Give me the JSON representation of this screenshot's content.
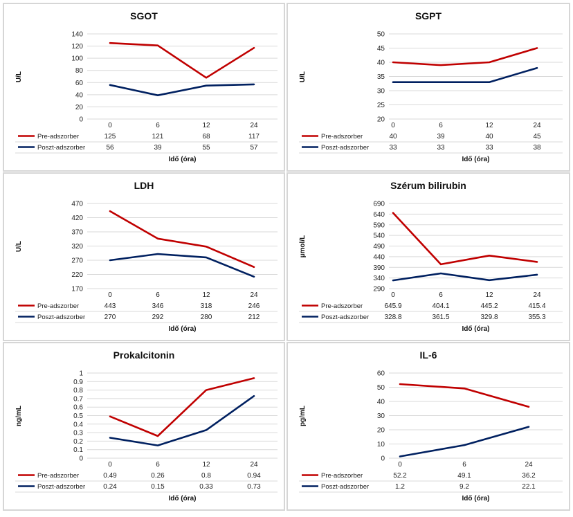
{
  "colors": {
    "pre": "#C00000",
    "post": "#002060",
    "grid": "#d9d9d9",
    "border": "#d6d6d6"
  },
  "chart_data": [
    {
      "type": "line",
      "title": "SGOT",
      "ylabel": "U/L",
      "xlabel": "Idő (óra)",
      "categories": [
        "0",
        "6",
        "12",
        "24"
      ],
      "ylim": [
        0,
        140
      ],
      "yticks": [
        0,
        20,
        40,
        60,
        80,
        100,
        120,
        140
      ],
      "series": [
        {
          "name": "Pre-adszorber",
          "values": [
            125,
            121,
            68,
            117
          ],
          "labels": [
            "125",
            "121",
            "68",
            "117"
          ]
        },
        {
          "name": "Poszt-adszorber",
          "values": [
            56,
            39,
            55,
            57
          ],
          "labels": [
            "56",
            "39",
            "55",
            "57"
          ]
        }
      ]
    },
    {
      "type": "line",
      "title": "SGPT",
      "ylabel": "U/L",
      "xlabel": "Idő (óra)",
      "categories": [
        "0",
        "6",
        "12",
        "24"
      ],
      "ylim": [
        20,
        50
      ],
      "yticks": [
        20,
        25,
        30,
        35,
        40,
        45,
        50
      ],
      "series": [
        {
          "name": "Pre-adszorber",
          "values": [
            40,
            39,
            40,
            45
          ],
          "labels": [
            "40",
            "39",
            "40",
            "45"
          ]
        },
        {
          "name": "Poszt-adszorber",
          "values": [
            33,
            33,
            33,
            38
          ],
          "labels": [
            "33",
            "33",
            "33",
            "38"
          ]
        }
      ]
    },
    {
      "type": "line",
      "title": "LDH",
      "ylabel": "U/L",
      "xlabel": "Idő (óra)",
      "categories": [
        "0",
        "6",
        "12",
        "24"
      ],
      "ylim": [
        170,
        470
      ],
      "yticks": [
        170,
        220,
        270,
        320,
        370,
        420,
        470
      ],
      "series": [
        {
          "name": "Pre-adszorber",
          "values": [
            443,
            346,
            318,
            246
          ],
          "labels": [
            "443",
            "346",
            "318",
            "246"
          ]
        },
        {
          "name": "Poszt-adszorber",
          "values": [
            270,
            292,
            280,
            212
          ],
          "labels": [
            "270",
            "292",
            "280",
            "212"
          ]
        }
      ]
    },
    {
      "type": "line",
      "title": "Szérum bilirubin",
      "ylabel": "µmol/L",
      "xlabel": "Idő (óra)",
      "categories": [
        "0",
        "6",
        "12",
        "24"
      ],
      "ylim": [
        290,
        690
      ],
      "yticks": [
        290,
        340,
        390,
        440,
        490,
        540,
        590,
        640,
        690
      ],
      "series": [
        {
          "name": "Pre-adszorber",
          "values": [
            645.9,
            404.1,
            445.2,
            415.4
          ],
          "labels": [
            "645.9",
            "404.1",
            "445.2",
            "415.4"
          ]
        },
        {
          "name": "Poszt-adszorber",
          "values": [
            328.8,
            361.5,
            329.8,
            355.3
          ],
          "labels": [
            "328.8",
            "361.5",
            "329.8",
            "355.3"
          ]
        }
      ]
    },
    {
      "type": "line",
      "title": "Prokalcitonin",
      "ylabel": "ng/mL",
      "xlabel": "Idő (óra)",
      "categories": [
        "0",
        "6",
        "12",
        "24"
      ],
      "ylim": [
        0,
        1
      ],
      "yticks": [
        0,
        0.1,
        0.2,
        0.3,
        0.4,
        0.5,
        0.6,
        0.7,
        0.8,
        0.9,
        1
      ],
      "series": [
        {
          "name": "Pre-adszorber",
          "values": [
            0.49,
            0.26,
            0.8,
            0.94
          ],
          "labels": [
            "0.49",
            "0.26",
            "0.8",
            "0.94"
          ]
        },
        {
          "name": "Poszt-adszorber",
          "values": [
            0.24,
            0.15,
            0.33,
            0.73
          ],
          "labels": [
            "0.24",
            "0.15",
            "0.33",
            "0.73"
          ]
        }
      ]
    },
    {
      "type": "line",
      "title": "IL-6",
      "ylabel": "pg/mL",
      "xlabel": "Idő (óra)",
      "categories": [
        "0",
        "6",
        "24"
      ],
      "ylim": [
        0,
        60
      ],
      "yticks": [
        0,
        10,
        20,
        30,
        40,
        50,
        60
      ],
      "series": [
        {
          "name": "Pre-adszorber",
          "values": [
            52.2,
            49.1,
            36.2
          ],
          "labels": [
            "52.2",
            "49.1",
            "36.2"
          ]
        },
        {
          "name": "Poszt-adszorber",
          "values": [
            1.2,
            9.2,
            22.1
          ],
          "labels": [
            "1.2",
            "9.2",
            "22.1"
          ]
        }
      ]
    }
  ]
}
